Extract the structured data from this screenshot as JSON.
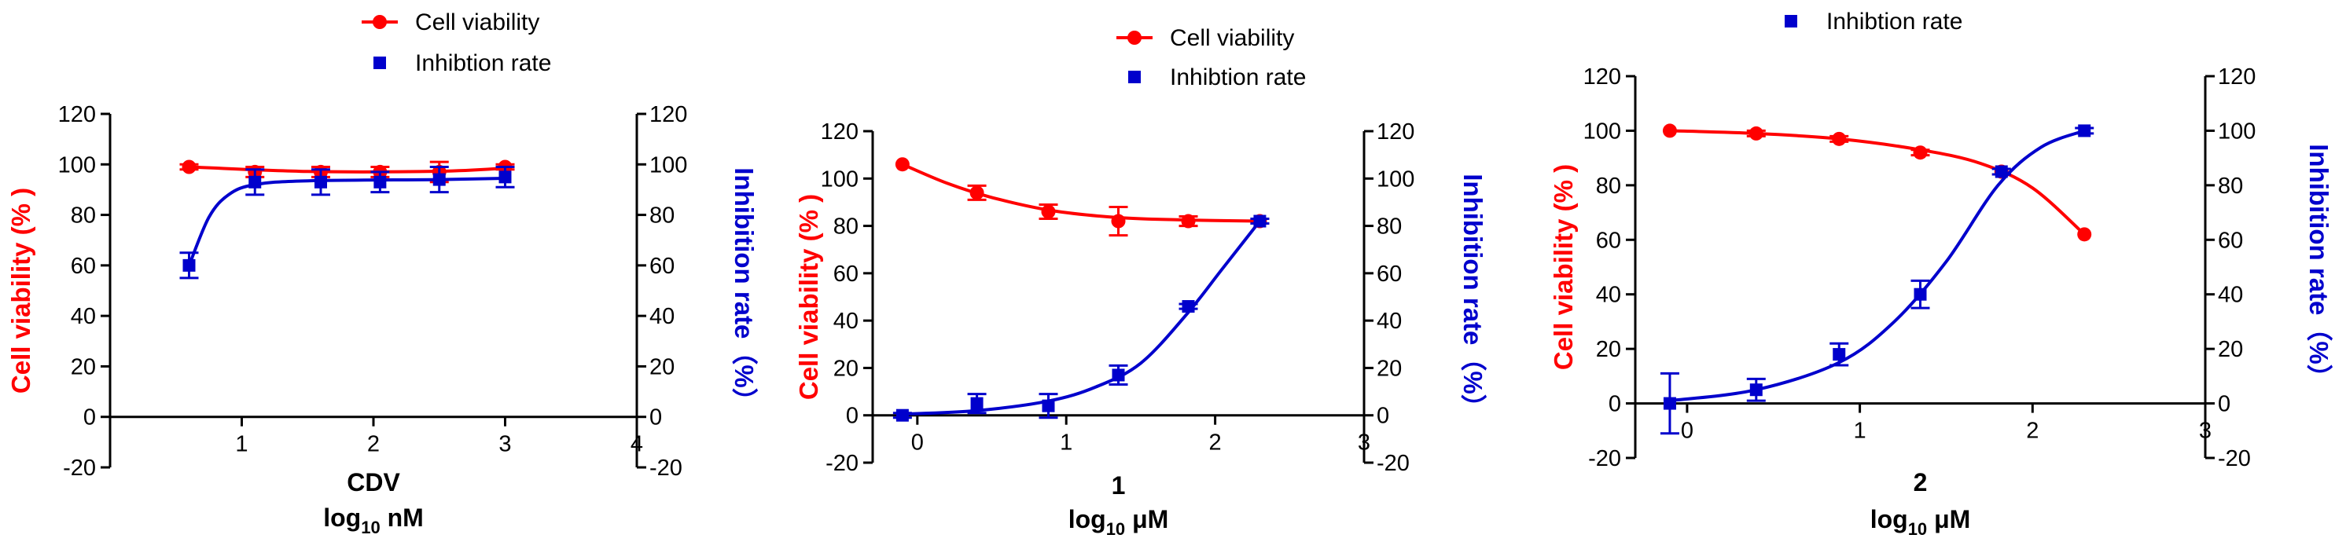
{
  "colors": {
    "viability": "#ff0000",
    "inhibition": "#0000cc",
    "axis": "#000000"
  },
  "chart_data": [
    {
      "type": "scatter",
      "panel": "CDV",
      "legend": [
        "Cell viability",
        "Inhibtion rate"
      ],
      "xlabel_line1": "CDV",
      "xlabel_unit": "nM",
      "ylabel_left": "Cell viability (% )",
      "ylabel_right": "Inhibition rate（%）",
      "xlim": [
        0,
        4
      ],
      "ylim": [
        -20,
        120
      ],
      "xticks": [
        1,
        2,
        3,
        4
      ],
      "yticks": [
        -20,
        0,
        20,
        40,
        60,
        80,
        100,
        120
      ],
      "series": [
        {
          "name": "Cell viability",
          "color": "#ff0000",
          "marker": "circle",
          "x": [
            0.6,
            1.1,
            1.6,
            2.05,
            2.5,
            3.0
          ],
          "y": [
            99,
            97,
            97,
            97,
            97,
            99
          ],
          "err": [
            1,
            2,
            2,
            2,
            4,
            1
          ],
          "curve": [
            [
              0.6,
              99
            ],
            [
              1.5,
              97.2
            ],
            [
              2.5,
              97.3
            ],
            [
              3.0,
              98.5
            ]
          ]
        },
        {
          "name": "Inhibition rate",
          "color": "#0000cc",
          "marker": "square",
          "x": [
            0.6,
            1.1,
            1.6,
            2.05,
            2.5,
            3.0
          ],
          "y": [
            60,
            93,
            93,
            93,
            94,
            95
          ],
          "err": [
            5,
            5,
            5,
            4,
            5,
            4
          ],
          "curve": [
            [
              0.6,
              60
            ],
            [
              0.75,
              79
            ],
            [
              0.9,
              88
            ],
            [
              1.1,
              92
            ],
            [
              1.5,
              93.5
            ],
            [
              2.5,
              94
            ],
            [
              3.0,
              94.5
            ]
          ]
        }
      ]
    },
    {
      "type": "scatter",
      "panel": "1",
      "legend": [
        "Cell viability",
        "Inhibtion rate"
      ],
      "xlabel_line1": "1",
      "xlabel_unit": "μM",
      "ylabel_left": "Cell viability (% )",
      "ylabel_right": "Inhibition rate（%）",
      "xlim": [
        -0.3,
        3
      ],
      "ylim": [
        -20,
        120
      ],
      "xticks": [
        0,
        1,
        2,
        3
      ],
      "yticks": [
        -20,
        0,
        20,
        40,
        60,
        80,
        100,
        120
      ],
      "series": [
        {
          "name": "Cell viability",
          "color": "#ff0000",
          "marker": "circle",
          "x": [
            -0.1,
            0.4,
            0.88,
            1.35,
            1.82,
            2.3
          ],
          "y": [
            106,
            94,
            86,
            82,
            82,
            82
          ],
          "err": [
            0,
            3,
            3,
            6,
            2,
            1
          ],
          "curve": [
            [
              -0.1,
              106
            ],
            [
              0.2,
              98
            ],
            [
              0.5,
              92
            ],
            [
              0.9,
              86.5
            ],
            [
              1.35,
              83.5
            ],
            [
              1.8,
              82.5
            ],
            [
              2.3,
              82
            ]
          ]
        },
        {
          "name": "Inhibition rate",
          "color": "#0000cc",
          "marker": "square",
          "x": [
            -0.1,
            0.4,
            0.88,
            1.35,
            1.82,
            2.3
          ],
          "y": [
            0,
            5,
            4,
            17,
            46,
            82
          ],
          "err": [
            1,
            4,
            5,
            4,
            1,
            1
          ],
          "curve": [
            [
              -0.1,
              0.5
            ],
            [
              0.4,
              2
            ],
            [
              0.88,
              6
            ],
            [
              1.2,
              12
            ],
            [
              1.5,
              22
            ],
            [
              1.8,
              42
            ],
            [
              2.05,
              62
            ],
            [
              2.3,
              82
            ]
          ]
        }
      ]
    },
    {
      "type": "scatter",
      "panel": "2",
      "legend": [
        "Inhibtion rate"
      ],
      "xlabel_line1": "2",
      "xlabel_unit": "μM",
      "ylabel_left": "Cell viability (% )",
      "ylabel_right": "Inhibition rate（%）",
      "xlim": [
        -0.3,
        3
      ],
      "ylim": [
        -20,
        120
      ],
      "xticks": [
        0,
        1,
        2,
        3
      ],
      "yticks": [
        -20,
        0,
        20,
        40,
        60,
        80,
        100,
        120
      ],
      "series": [
        {
          "name": "Cell viability",
          "color": "#ff0000",
          "marker": "circle",
          "x": [
            -0.1,
            0.4,
            0.88,
            1.35,
            1.82,
            2.3
          ],
          "y": [
            100,
            99,
            97,
            92,
            85,
            62
          ],
          "err": [
            0,
            1,
            1,
            1,
            1,
            0
          ],
          "curve": [
            [
              -0.1,
              100
            ],
            [
              0.4,
              99
            ],
            [
              0.88,
              97
            ],
            [
              1.35,
              93
            ],
            [
              1.7,
              88
            ],
            [
              2.0,
              79
            ],
            [
              2.3,
              62
            ]
          ]
        },
        {
          "name": "Inhibition rate",
          "color": "#0000cc",
          "marker": "square",
          "x": [
            -0.1,
            0.4,
            0.88,
            1.35,
            1.82,
            2.3
          ],
          "y": [
            0,
            5,
            18,
            40,
            85,
            100
          ],
          "err": [
            11,
            4,
            4,
            5,
            1,
            1
          ],
          "curve": [
            [
              -0.1,
              1
            ],
            [
              0.4,
              5
            ],
            [
              0.88,
              15
            ],
            [
              1.2,
              30
            ],
            [
              1.5,
              52
            ],
            [
              1.8,
              80
            ],
            [
              2.05,
              94
            ],
            [
              2.3,
              100
            ]
          ]
        }
      ]
    }
  ]
}
